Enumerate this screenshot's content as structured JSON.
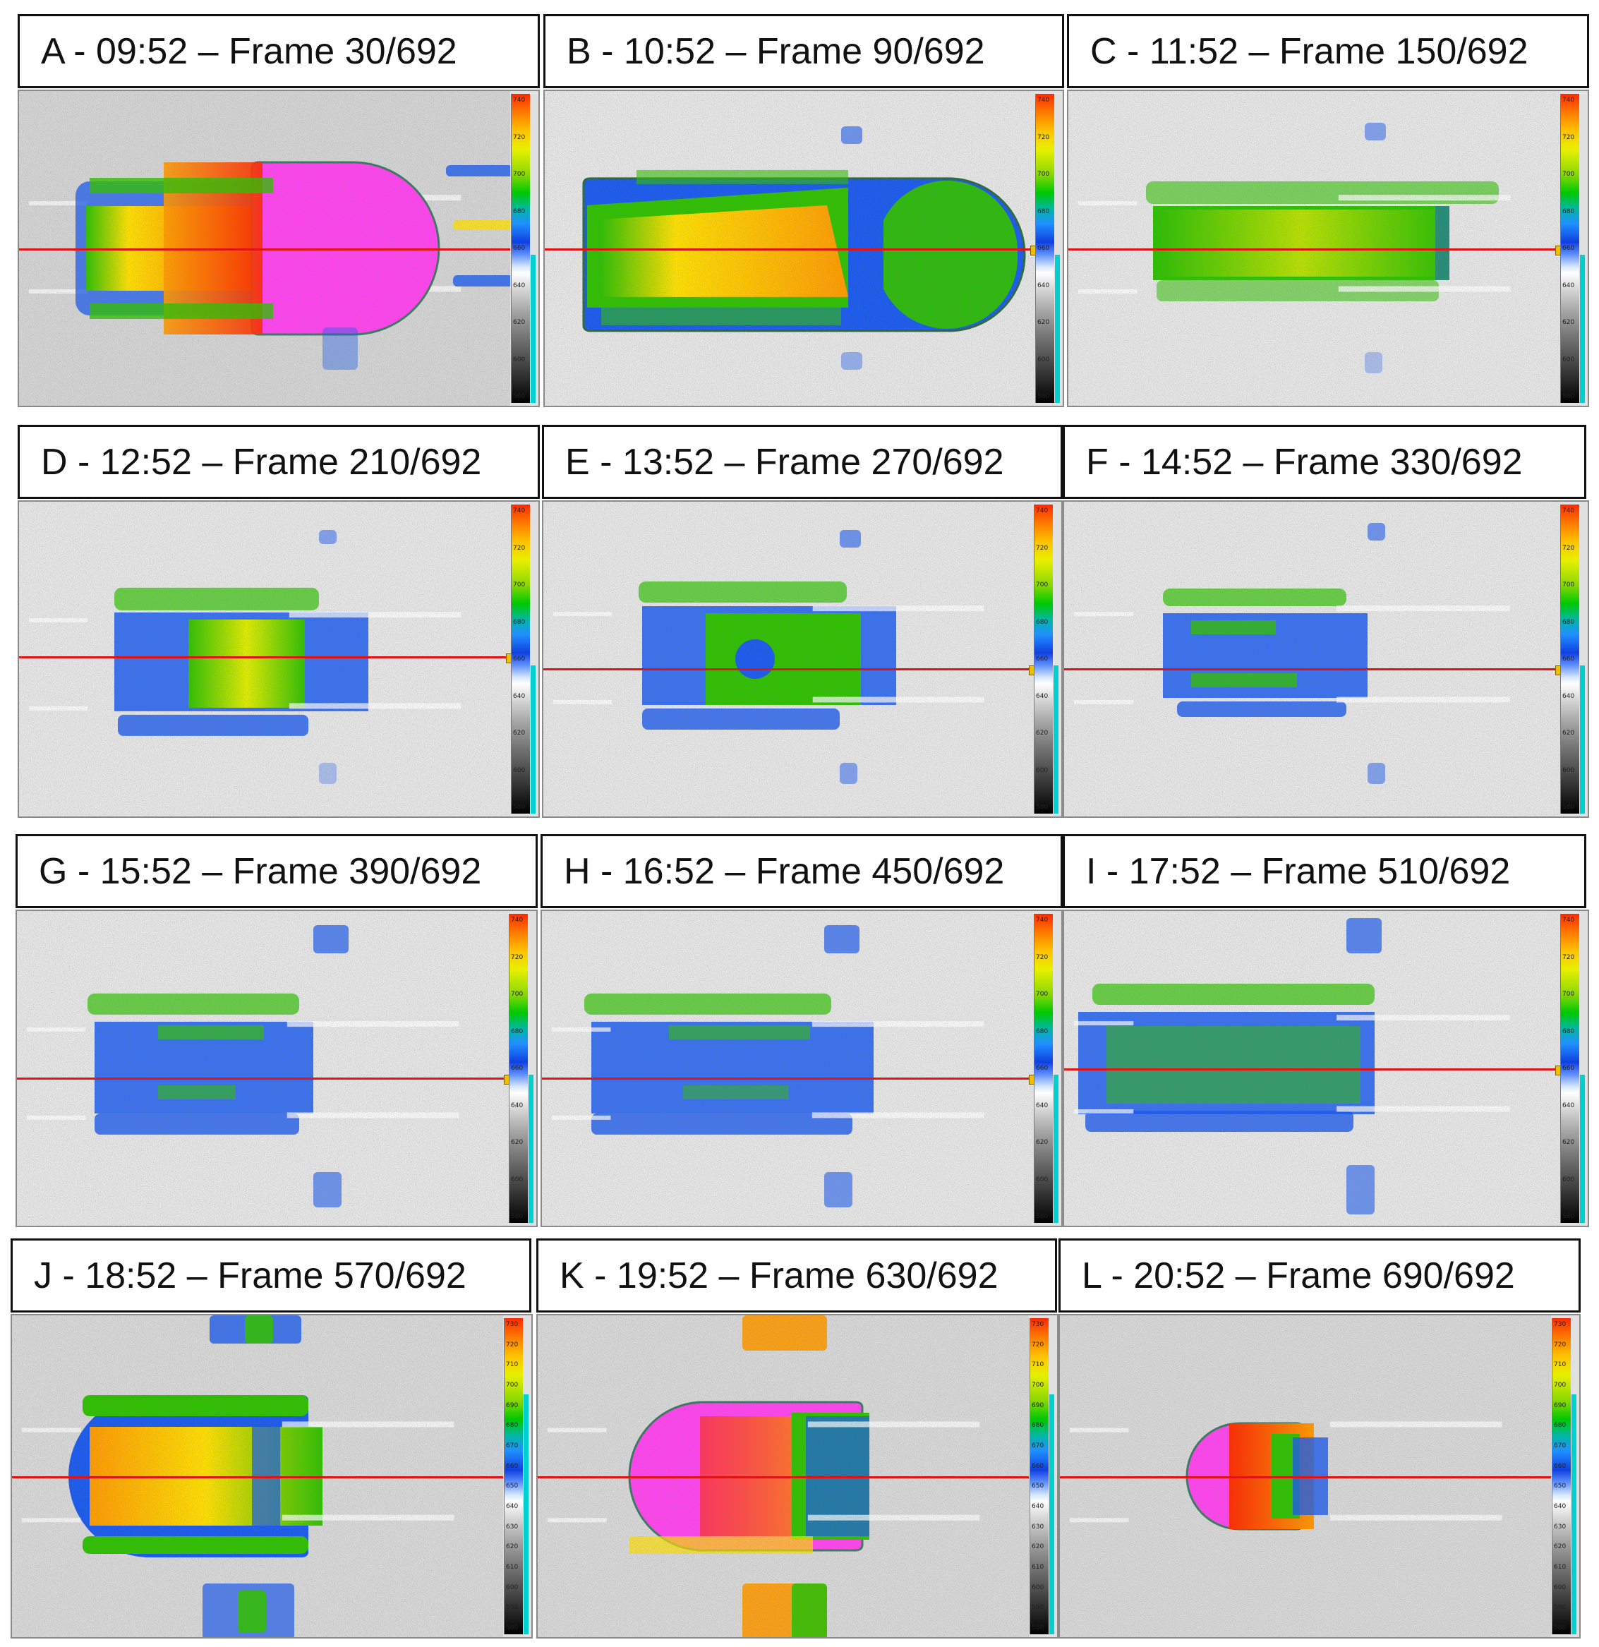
{
  "panels": [
    {
      "label": "A - 09:52 – Frame 30/692"
    },
    {
      "label": "B - 10:52 – Frame 90/692"
    },
    {
      "label": "C - 11:52 – Frame 150/692"
    },
    {
      "label": "D - 12:52 – Frame 210/692"
    },
    {
      "label": "E - 13:52 – Frame 270/692"
    },
    {
      "label": "F - 14:52 – Frame 330/692"
    },
    {
      "label": "G - 15:52 – Frame 390/692"
    },
    {
      "label": "H - 16:52 – Frame 450/692"
    },
    {
      "label": "I - 17:52 – Frame 510/692"
    },
    {
      "label": "J - 18:52 – Frame 570/692"
    },
    {
      "label": "K - 19:52 – Frame 630/692"
    },
    {
      "label": "L - 20:52 – Frame 690/692"
    }
  ],
  "scales": {
    "standard": [
      "740",
      "720",
      "700",
      "680",
      "660",
      "640",
      "620",
      "600",
      "580"
    ],
    "extended": [
      "730",
      "720",
      "710",
      "700",
      "690",
      "680",
      "670",
      "660",
      "650",
      "640",
      "630",
      "620",
      "610",
      "600",
      "590",
      "580"
    ]
  },
  "colors": {
    "red_line": "#e01414",
    "background": "#e1e1e1",
    "hot_magenta": "#ff44ee",
    "hot_red": "#ff2a00",
    "orange": "#ff9a00",
    "yellow": "#ffe000",
    "green": "#2fc000",
    "blue": "#1a5aee"
  }
}
